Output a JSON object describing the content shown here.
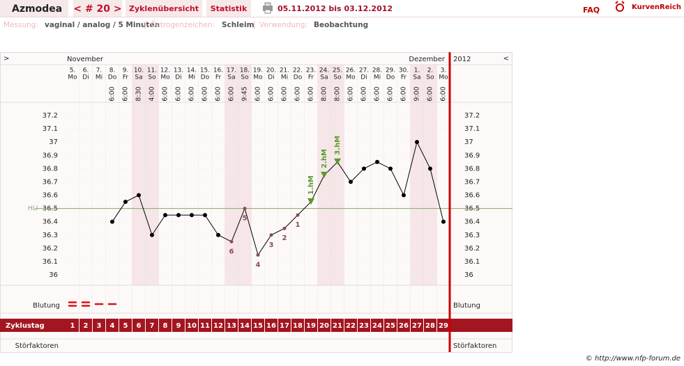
{
  "header": {
    "user": "Azmodea",
    "cycle_nav": "< # 20 >",
    "tabs": [
      "Zyklenübersicht",
      "Statistik"
    ],
    "date_range": "05.11.2012 bis 03.12.2012",
    "faq": "FAQ",
    "logo": "KurvenReich"
  },
  "info": [
    {
      "label": "Messung:",
      "value": "vaginal / analog / 5 Minuten"
    },
    {
      "label": "Östrogenzeichen:",
      "value": "Schleim"
    },
    {
      "label": "Verwendung:",
      "value": "Beobachtung"
    }
  ],
  "footer": "© http://www.nfp-forum.de",
  "chart_data": {
    "type": "line",
    "nav_prev": ">",
    "nav_next": "<",
    "months": [
      "November",
      "Dezember"
    ],
    "year": "2012",
    "dates": [
      "5.",
      "6.",
      "7.",
      "8.",
      "9.",
      "10.",
      "11.",
      "12.",
      "13.",
      "14.",
      "15.",
      "16.",
      "17.",
      "18.",
      "19.",
      "20.",
      "21.",
      "22.",
      "23.",
      "24.",
      "25.",
      "26.",
      "27.",
      "28.",
      "29.",
      "30.",
      "1.",
      "2.",
      "3."
    ],
    "weekdays": [
      "Mo",
      "Di",
      "Mi",
      "Do",
      "Fr",
      "Sa",
      "So",
      "Mo",
      "Di",
      "Mi",
      "Do",
      "Fr",
      "Sa",
      "So",
      "Mo",
      "Di",
      "Mi",
      "Do",
      "Fr",
      "Sa",
      "So",
      "Mo",
      "Di",
      "Mi",
      "Do",
      "Fr",
      "Sa",
      "So",
      "Mo"
    ],
    "times": [
      null,
      null,
      null,
      "6:00",
      "6:00",
      "8:30",
      "4:00",
      "6:00",
      "6:00",
      "6:00",
      "6:00",
      "6:00",
      "6:00",
      "9:45",
      "6:00",
      "6:00",
      "6:00",
      "6:00",
      "6:00",
      "8:00",
      "8:00",
      "6:00",
      "6:00",
      "6:00",
      "6:00",
      "6:00",
      "9:00",
      "6:00",
      "6:00"
    ],
    "shaded_columns": [
      6,
      7,
      13,
      14,
      20,
      21,
      27,
      28
    ],
    "shade_color": "#f6e6e8",
    "x_label": "Zyklustag",
    "x": [
      1,
      2,
      3,
      4,
      5,
      6,
      7,
      8,
      9,
      10,
      11,
      12,
      13,
      14,
      15,
      16,
      17,
      18,
      19,
      20,
      21,
      22,
      23,
      24,
      25,
      26,
      27,
      28,
      29
    ],
    "values": [
      null,
      null,
      null,
      36.4,
      36.55,
      36.6,
      36.3,
      36.45,
      36.45,
      36.45,
      36.45,
      36.3,
      36.25,
      36.5,
      36.15,
      36.3,
      36.35,
      36.45,
      36.55,
      36.75,
      36.85,
      36.7,
      36.8,
      36.85,
      36.8,
      36.6,
      37.0,
      36.8,
      36.4
    ],
    "color": "#000000",
    "markers": [
      null,
      null,
      null,
      "circle",
      "circle",
      "circle",
      "circle",
      "circle",
      "circle",
      "circle",
      "circle",
      "circle",
      "circle",
      "circle",
      "circle",
      "circle",
      "circle",
      "circle",
      "triangle",
      "triangle",
      "triangle",
      "circle",
      "circle",
      "circle",
      "circle",
      "circle",
      "circle",
      "circle",
      "circle"
    ],
    "marker_colors": [
      null,
      null,
      null,
      "#000000",
      "#000000",
      "#000000",
      "#000000",
      "#000000",
      "#000000",
      "#000000",
      "#000000",
      "#000000",
      "#8b4a5a",
      "#8b4a5a",
      "#8b4a5a",
      "#8b4a5a",
      "#8b4a5a",
      "#8b4a5a",
      "#5a9a2a",
      "#5a9a2a",
      "#5a9a2a",
      "#000000",
      "#000000",
      "#000000",
      "#000000",
      "#000000",
      "#000000",
      "#000000",
      "#000000"
    ],
    "ylim": [
      36,
      37.2
    ],
    "yticks": [
      36,
      36.1,
      36.2,
      36.3,
      36.4,
      36.5,
      36.6,
      36.7,
      36.8,
      36.9,
      37,
      37.1,
      37.2
    ],
    "grid": true,
    "hline": {
      "label": "HLl",
      "value": 36.5,
      "color": "#8aa860"
    },
    "annotations": [
      {
        "text": "6",
        "x": 13,
        "color": "#8b4a5a"
      },
      {
        "text": "5",
        "x": 14,
        "color": "#8b4a5a"
      },
      {
        "text": "4",
        "x": 15,
        "color": "#8b4a5a"
      },
      {
        "text": "3",
        "x": 16,
        "color": "#8b4a5a"
      },
      {
        "text": "2",
        "x": 17,
        "color": "#8b4a5a"
      },
      {
        "text": "1",
        "x": 18,
        "color": "#8b4a5a"
      },
      {
        "text": "1.hM",
        "x": 19,
        "color": "#5a9a2a",
        "vertical": true
      },
      {
        "text": "2.hM",
        "x": 20,
        "color": "#5a9a2a",
        "vertical": true
      },
      {
        "text": "3.hM",
        "x": 21,
        "color": "#5a9a2a",
        "vertical": true
      }
    ],
    "bleeding": {
      "label": "Blutung",
      "values": [
        2,
        2,
        1,
        1,
        null,
        null,
        null,
        null,
        null,
        null,
        null,
        null,
        null,
        null,
        null,
        null,
        null,
        null,
        null,
        null,
        null,
        null,
        null,
        null,
        null,
        null,
        null,
        null,
        null
      ],
      "color": "#dd1111"
    },
    "disturbances_label": "Störfaktoren"
  }
}
